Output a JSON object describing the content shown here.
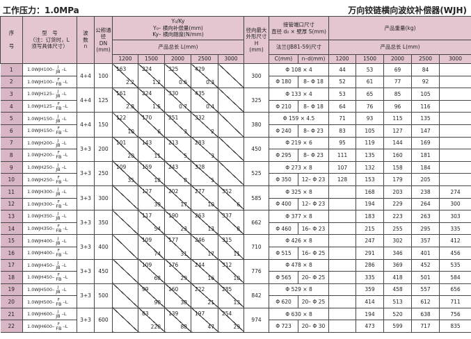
{
  "page_title": "工作压力：1.0MPa",
  "doc_title": "万向铰链横向波纹补偿器(WJH)",
  "header": {
    "seq_top": "序",
    "seq_bottom": "号",
    "model_top": "型　号",
    "model_note": "（注：订货时，L 须写具体尺寸）",
    "waves_top": "波",
    "waves_mid": "数",
    "waves_bottom": "n",
    "dn_top": "公称通径",
    "dn_mid": "DN",
    "dn_bottom": "(mm)",
    "yk_title": "Y₀/Ky",
    "yk_line1": "Y₀– 横向补偿量(mm)",
    "yk_line2": "Ky– 横向刚度(N/mm)",
    "yk_length": "产品总长 L(mm)",
    "h_top": "径向最大外形尺寸",
    "h_mid": "H",
    "h_bottom": "(mm)",
    "pipe_title": "接管端口尺寸",
    "pipe_sub": "直径 d₀ × 壁厚 S(mm)",
    "flange_title": "法兰(JB81-59)尺寸",
    "c_label": "C(mm)",
    "nd_label": "n–d(mm)",
    "weight_title": "产品重量(kg)",
    "weight_length": "产品总长 L(mm)",
    "lengths": [
      "1200",
      "1500",
      "2000",
      "2500",
      "3000"
    ]
  },
  "groups": [
    {
      "dn": "100",
      "waves": "4+4",
      "y": [
        "163",
        "224",
        "325",
        "429",
        ""
      ],
      "k": [
        "2.2",
        "1.2",
        "0.6",
        "0.3",
        ""
      ],
      "h": "300",
      "pipe": "Φ 108 × 4",
      "c": "Φ 180",
      "nd": "8– Φ 18",
      "w1": [
        "44",
        "53",
        "69",
        "84",
        ""
      ],
      "w2": [
        "52",
        "61",
        "77",
        "92",
        ""
      ]
    },
    {
      "dn": "125",
      "waves": "4+4",
      "y": [
        "161",
        "224",
        "330",
        "435",
        ""
      ],
      "k": [
        "2.8",
        "1.5",
        "0.7",
        "0.4",
        ""
      ],
      "h": "325",
      "pipe": "Φ 133 × 4",
      "c": "Φ 210",
      "nd": "8– Φ 18",
      "w1": [
        "53",
        "65",
        "85",
        "105",
        ""
      ],
      "w2": [
        "64",
        "76",
        "96",
        "116",
        ""
      ]
    },
    {
      "dn": "150",
      "waves": "4+4",
      "y": [
        "122",
        "170",
        "251",
        "332",
        ""
      ],
      "k": [
        "10",
        "6",
        "3",
        "2",
        ""
      ],
      "h": "380",
      "pipe": "Φ 159 × 4.5",
      "c": "Φ 240",
      "nd": "8– Φ 23",
      "w1": [
        "71",
        "93",
        "115",
        "135",
        ""
      ],
      "w2": [
        "83",
        "105",
        "127",
        "147",
        ""
      ]
    },
    {
      "dn": "200",
      "waves": "3+3",
      "y": [
        "101",
        "143",
        "213",
        "283",
        ""
      ],
      "k": [
        "20",
        "11",
        "5",
        "3",
        ""
      ],
      "h": "450",
      "pipe": "Φ 219 × 6",
      "c": "Φ 295",
      "nd": "8– Φ 23",
      "w1": [
        "95",
        "119",
        "144",
        "169",
        ""
      ],
      "w2": [
        "111",
        "135",
        "160",
        "181",
        ""
      ]
    },
    {
      "dn": "250",
      "waves": "3+3",
      "y": [
        "109",
        "159",
        "243",
        "328",
        ""
      ],
      "k": [
        "35",
        "18",
        "8",
        "5",
        ""
      ],
      "h": "525",
      "pipe": "Φ 273 × 8",
      "c": "Φ 350",
      "nd": "12– Φ 23",
      "w1": [
        "107",
        "132",
        "158",
        "184",
        ""
      ],
      "w2": [
        "128",
        "153",
        "179",
        "205",
        ""
      ]
    },
    {
      "dn": "300",
      "waves": "3+3",
      "y": [
        "",
        "127",
        "202",
        "277",
        "352"
      ],
      "k": [
        "",
        "39",
        "17",
        "10",
        "6"
      ],
      "h": "585",
      "pipe": "Φ 325 × 8",
      "c": "Φ 400",
      "nd": "12– Φ 23",
      "w1": [
        "",
        "168",
        "203",
        "238",
        "274"
      ],
      "w2": [
        "",
        "194",
        "229",
        "264",
        "300"
      ]
    },
    {
      "dn": "350",
      "waves": "3+3",
      "y": [
        "",
        "117",
        "190",
        "263",
        "337"
      ],
      "k": [
        "",
        "54",
        "23",
        "13",
        "8"
      ],
      "h": "662",
      "pipe": "Φ 377 × 8",
      "c": "Φ 460",
      "nd": "16– Φ 23",
      "w1": [
        "",
        "183",
        "223",
        "263",
        "303"
      ],
      "w2": [
        "",
        "215",
        "255",
        "295",
        "335"
      ]
    },
    {
      "dn": "400",
      "waves": "3+3",
      "y": [
        "",
        "109",
        "177",
        "246",
        "315"
      ],
      "k": [
        "",
        "74",
        "31",
        "17",
        "11"
      ],
      "h": "710",
      "pipe": "Φ 426 × 8",
      "c": "Φ 515",
      "nd": "16– Φ 25",
      "w1": [
        "",
        "247",
        "302",
        "357",
        "412"
      ],
      "w2": [
        "",
        "291",
        "346",
        "401",
        "456"
      ]
    },
    {
      "dn": "450",
      "waves": "3+3",
      "y": [
        "",
        "109",
        "176",
        "244",
        "312"
      ],
      "k": [
        "",
        "68",
        "29",
        "16",
        "10"
      ],
      "h": "776",
      "pipe": "Φ 478 × 8",
      "c": "Φ 565",
      "nd": "20– Φ 25",
      "w1": [
        "",
        "286",
        "369",
        "452",
        "535"
      ],
      "w2": [
        "",
        "335",
        "418",
        "501",
        "584"
      ]
    },
    {
      "dn": "500",
      "waves": "3+3",
      "y": [
        "",
        "99",
        "160",
        "222",
        "285"
      ],
      "k": [
        "",
        "90",
        "38",
        "21",
        "13"
      ],
      "h": "842",
      "pipe": "Φ 529 × 8",
      "c": "Φ 620",
      "nd": "20– Φ 25",
      "w1": [
        "",
        "359",
        "458",
        "557",
        "656"
      ],
      "w2": [
        "",
        "414",
        "513",
        "612",
        "711"
      ]
    },
    {
      "dn": "600",
      "waves": "3+3",
      "y": [
        "",
        "83",
        "139",
        "197",
        "254"
      ],
      "k": [
        "",
        "220",
        "88",
        "47",
        "29"
      ],
      "h": "974",
      "pipe": "Φ 630 × 8",
      "c": "Φ 723",
      "nd": "20– Φ 30",
      "w1": [
        "",
        "194",
        "520",
        "638",
        "756"
      ],
      "w2": [
        "",
        "473",
        "599",
        "717",
        "835"
      ]
    }
  ],
  "model_format": {
    "prefix": "1.0WJH",
    "sep": "–",
    "suffix": "–L",
    "row1_sup": "J",
    "row1_code": "JB",
    "row2_sup": "F",
    "row2_code": "FB"
  }
}
